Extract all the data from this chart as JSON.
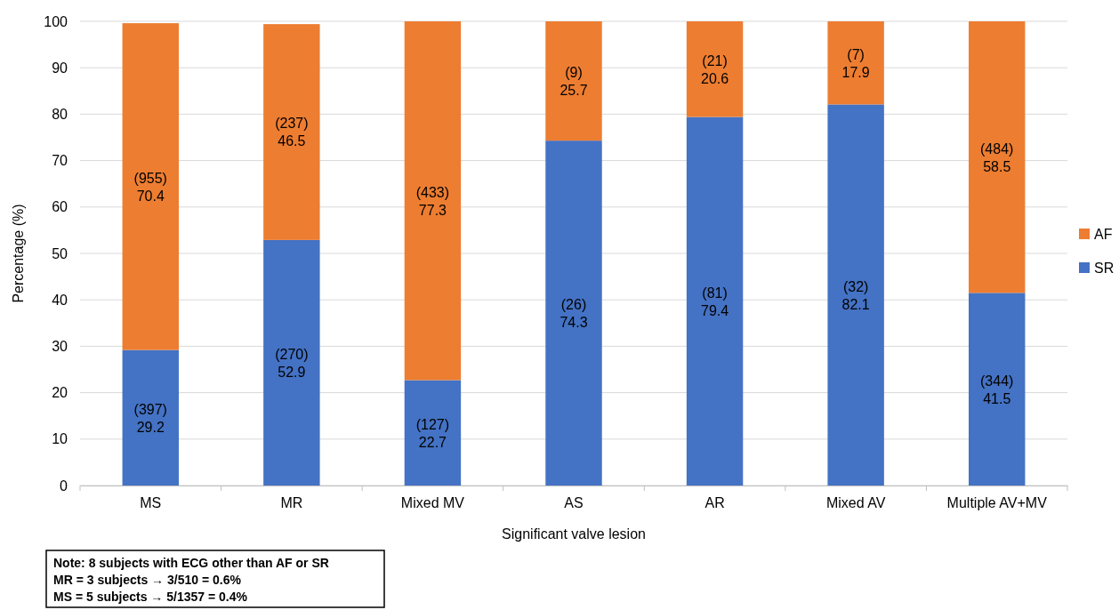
{
  "chart_data": {
    "type": "bar",
    "stacked": true,
    "xlabel": "Significant valve lesion",
    "ylabel": "Percentage (%)",
    "categories": [
      "MS",
      "MR",
      "Mixed MV",
      "AS",
      "AR",
      "Mixed AV",
      "Multiple AV+MV"
    ],
    "series": [
      {
        "name": "SR",
        "color": "#4472c4",
        "values": [
          29.2,
          52.9,
          22.7,
          74.3,
          79.4,
          82.1,
          41.5
        ],
        "value_labels": [
          "(397)\n29.2",
          "(270)\n52.9",
          "(127)\n22.7",
          "(26)\n74.3",
          "(81)\n79.4",
          "(32)\n82.1",
          "(344)\n41.5"
        ]
      },
      {
        "name": "AF",
        "color": "#ed7d31",
        "values": [
          70.4,
          46.5,
          77.3,
          25.7,
          20.6,
          17.9,
          58.5
        ],
        "value_labels": [
          "(955)\n70.4",
          "(237)\n46.5",
          "(433)\n77.3",
          "(9)\n25.7",
          "(21)\n20.6",
          "(7)\n17.9",
          "(484)\n58.5"
        ]
      }
    ],
    "ylim": [
      0,
      100
    ],
    "yticks": [
      0,
      10,
      20,
      30,
      40,
      50,
      60,
      70,
      80,
      90,
      100
    ],
    "grid": "y",
    "legend": "right",
    "annotations": [
      "Note: 8 subjects with ECG other than AF or SR",
      "MR = 3 subjects → 3/510 = 0.6%",
      "MS = 5 subjects → 5/1357 = 0.4%"
    ]
  }
}
